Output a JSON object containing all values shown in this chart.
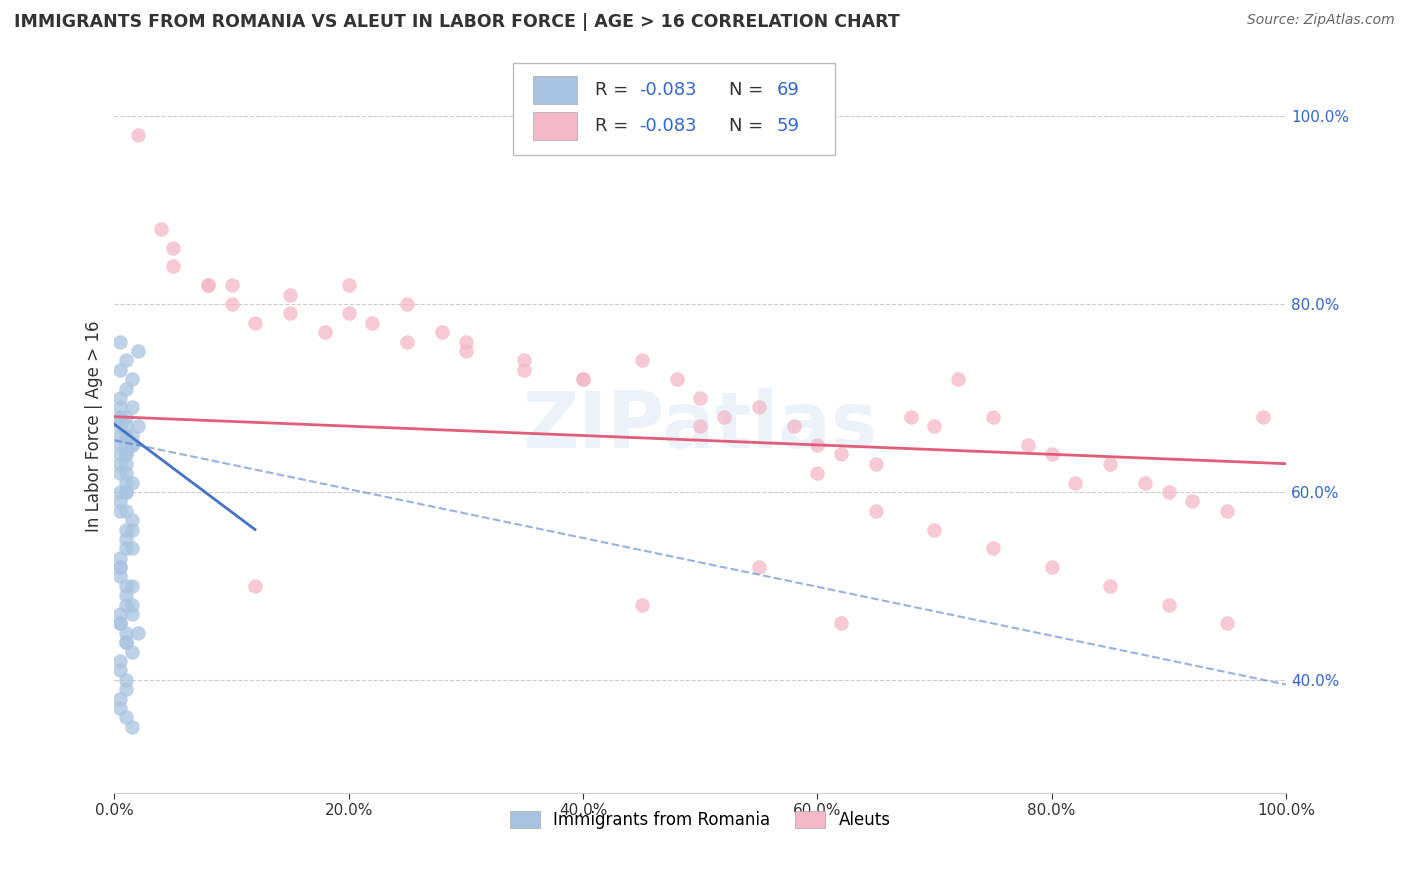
{
  "title": "IMMIGRANTS FROM ROMANIA VS ALEUT IN LABOR FORCE | AGE > 16 CORRELATION CHART",
  "source": "Source: ZipAtlas.com",
  "ylabel": "In Labor Force | Age > 16",
  "legend_label1": "Immigrants from Romania",
  "legend_label2": "Aleuts",
  "r1": -0.083,
  "n1": 69,
  "r2": -0.083,
  "n2": 59,
  "xlim": [
    0.0,
    1.0
  ],
  "ylim": [
    0.28,
    1.06
  ],
  "xticks": [
    0.0,
    0.2,
    0.4,
    0.6,
    0.8,
    1.0
  ],
  "yticks": [
    0.4,
    0.6,
    0.8,
    1.0
  ],
  "xticklabels": [
    "0.0%",
    "20.0%",
    "40.0%",
    "60.0%",
    "80.0%",
    "100.0%"
  ],
  "yticklabels": [
    "40.0%",
    "60.0%",
    "80.0%",
    "100.0%"
  ],
  "color1": "#a8c4e0",
  "color2": "#f4b8c8",
  "trendline1_color": "#4472c4",
  "trendline2_color": "#e05c7a",
  "background_color": "#ffffff",
  "blue_scatter_x": [
    0.005,
    0.01,
    0.015,
    0.02,
    0.005,
    0.01,
    0.005,
    0.01,
    0.015,
    0.02,
    0.005,
    0.01,
    0.015,
    0.005,
    0.01,
    0.005,
    0.01,
    0.015,
    0.005,
    0.01,
    0.005,
    0.01,
    0.005,
    0.01,
    0.005,
    0.01,
    0.015,
    0.005,
    0.01,
    0.005,
    0.01,
    0.005,
    0.015,
    0.01,
    0.005,
    0.015,
    0.01,
    0.005,
    0.01,
    0.015,
    0.005,
    0.01,
    0.015,
    0.005,
    0.01,
    0.015,
    0.02,
    0.005,
    0.01,
    0.005,
    0.01,
    0.015,
    0.005,
    0.01,
    0.005,
    0.015,
    0.01,
    0.005,
    0.01,
    0.005,
    0.01,
    0.005,
    0.01,
    0.015,
    0.005,
    0.01,
    0.015,
    0.005,
    0.01
  ],
  "blue_scatter_y": [
    0.76,
    0.74,
    0.72,
    0.75,
    0.7,
    0.68,
    0.73,
    0.71,
    0.69,
    0.67,
    0.66,
    0.64,
    0.65,
    0.68,
    0.66,
    0.69,
    0.67,
    0.65,
    0.63,
    0.61,
    0.64,
    0.62,
    0.6,
    0.58,
    0.65,
    0.63,
    0.61,
    0.67,
    0.65,
    0.62,
    0.6,
    0.68,
    0.66,
    0.64,
    0.59,
    0.57,
    0.55,
    0.53,
    0.56,
    0.54,
    0.52,
    0.5,
    0.48,
    0.51,
    0.49,
    0.47,
    0.45,
    0.46,
    0.44,
    0.47,
    0.45,
    0.43,
    0.41,
    0.39,
    0.37,
    0.35,
    0.36,
    0.38,
    0.4,
    0.42,
    0.44,
    0.46,
    0.48,
    0.5,
    0.52,
    0.54,
    0.56,
    0.58,
    0.6
  ],
  "pink_scatter_x": [
    0.02,
    0.04,
    0.05,
    0.08,
    0.1,
    0.12,
    0.15,
    0.18,
    0.2,
    0.22,
    0.25,
    0.28,
    0.3,
    0.35,
    0.4,
    0.45,
    0.48,
    0.5,
    0.52,
    0.55,
    0.58,
    0.6,
    0.62,
    0.65,
    0.68,
    0.7,
    0.72,
    0.75,
    0.78,
    0.8,
    0.82,
    0.85,
    0.88,
    0.9,
    0.92,
    0.95,
    0.98,
    0.05,
    0.1,
    0.15,
    0.2,
    0.25,
    0.3,
    0.35,
    0.4,
    0.5,
    0.55,
    0.6,
    0.65,
    0.7,
    0.75,
    0.8,
    0.85,
    0.9,
    0.95,
    0.08,
    0.12,
    0.45,
    0.62
  ],
  "pink_scatter_y": [
    0.98,
    0.88,
    0.84,
    0.82,
    0.8,
    0.78,
    0.79,
    0.77,
    0.79,
    0.78,
    0.76,
    0.77,
    0.75,
    0.73,
    0.72,
    0.74,
    0.72,
    0.7,
    0.68,
    0.69,
    0.67,
    0.65,
    0.64,
    0.63,
    0.68,
    0.67,
    0.72,
    0.68,
    0.65,
    0.64,
    0.61,
    0.63,
    0.61,
    0.6,
    0.59,
    0.58,
    0.68,
    0.86,
    0.82,
    0.81,
    0.82,
    0.8,
    0.76,
    0.74,
    0.72,
    0.67,
    0.52,
    0.62,
    0.58,
    0.56,
    0.54,
    0.52,
    0.5,
    0.48,
    0.46,
    0.82,
    0.5,
    0.48,
    0.46
  ],
  "trendline1_x": [
    0.0,
    0.12
  ],
  "trendline1_y": [
    0.672,
    0.56
  ],
  "trendline2_x": [
    0.0,
    1.0
  ],
  "trendline2_y": [
    0.68,
    0.63
  ],
  "dash_line_x": [
    0.0,
    1.0
  ],
  "dash_line_y": [
    0.655,
    0.395
  ]
}
